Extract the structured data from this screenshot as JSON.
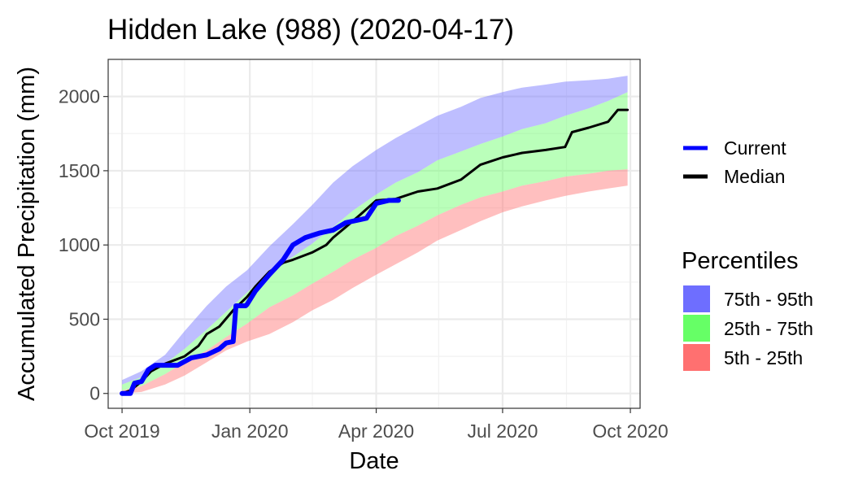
{
  "chart_data": {
    "type": "area",
    "title": "Hidden Lake (988) (2020-04-17)",
    "xlabel": "Date",
    "ylabel": "Accumulated Precipitation (mm)",
    "xlim": [
      "2019-09-21",
      "2020-10-08"
    ],
    "ylim": [
      -100,
      2250
    ],
    "x_ticks": [
      {
        "date": "2019-10-01",
        "label": "Oct 2019"
      },
      {
        "date": "2020-01-01",
        "label": "Jan 2020"
      },
      {
        "date": "2020-04-01",
        "label": "Apr 2020"
      },
      {
        "date": "2020-07-01",
        "label": "Jul 2020"
      },
      {
        "date": "2020-10-01",
        "label": "Oct 2020"
      }
    ],
    "x_minor_ticks": [
      "2019-11-15",
      "2020-02-15",
      "2020-05-16",
      "2020-08-16"
    ],
    "y_ticks": [
      0,
      500,
      1000,
      1500,
      2000
    ],
    "y_minor_ticks": [
      250,
      750,
      1250,
      1750
    ],
    "grid": true,
    "legend_placement": "right",
    "line_legend": [
      {
        "key": "current",
        "label": "Current",
        "color": "#0000ff"
      },
      {
        "key": "median",
        "label": "Median",
        "color": "#000000"
      }
    ],
    "band_legend_title": "Percentiles",
    "band_legend": [
      {
        "key": "p75_95",
        "label": "75th - 95th",
        "color": "#6e6eff"
      },
      {
        "key": "p25_75",
        "label": "25th - 75th",
        "color": "#66ff66"
      },
      {
        "key": "p5_25",
        "label": "5th - 25th",
        "color": "#ff7070"
      }
    ],
    "bands": {
      "dates": [
        "2019-10-01",
        "2019-10-15",
        "2019-11-01",
        "2019-11-15",
        "2019-12-01",
        "2019-12-15",
        "2019-12-30",
        "2020-01-15",
        "2020-02-01",
        "2020-02-15",
        "2020-03-01",
        "2020-03-15",
        "2020-04-01",
        "2020-04-15",
        "2020-05-01",
        "2020-05-15",
        "2020-06-01",
        "2020-06-15",
        "2020-07-01",
        "2020-07-15",
        "2020-08-01",
        "2020-08-15",
        "2020-09-01",
        "2020-09-15",
        "2020-09-29"
      ],
      "p5": [
        0,
        10,
        60,
        120,
        210,
        290,
        350,
        400,
        480,
        560,
        630,
        710,
        800,
        870,
        950,
        1030,
        1100,
        1160,
        1220,
        1260,
        1300,
        1330,
        1360,
        1380,
        1400
      ],
      "p25": [
        20,
        50,
        130,
        210,
        290,
        380,
        470,
        580,
        660,
        740,
        820,
        900,
        980,
        1060,
        1130,
        1200,
        1270,
        1320,
        1360,
        1400,
        1430,
        1460,
        1480,
        1500,
        1510
      ],
      "p75": [
        60,
        110,
        200,
        300,
        430,
        550,
        680,
        820,
        920,
        1010,
        1120,
        1230,
        1340,
        1420,
        1490,
        1570,
        1630,
        1680,
        1730,
        1780,
        1820,
        1870,
        1920,
        1970,
        2030
      ],
      "p95": [
        90,
        150,
        260,
        420,
        590,
        720,
        830,
        990,
        1140,
        1270,
        1420,
        1530,
        1640,
        1720,
        1800,
        1870,
        1930,
        1990,
        2030,
        2060,
        2080,
        2100,
        2110,
        2120,
        2140
      ]
    },
    "median": {
      "x": [
        "2019-10-01",
        "2019-10-07",
        "2019-10-15",
        "2019-10-22",
        "2019-11-01",
        "2019-11-15",
        "2019-11-25",
        "2019-12-01",
        "2019-12-10",
        "2019-12-20",
        "2019-12-30",
        "2020-01-05",
        "2020-01-15",
        "2020-01-25",
        "2020-02-01",
        "2020-02-15",
        "2020-02-25",
        "2020-03-01",
        "2020-03-10",
        "2020-03-20",
        "2020-04-01",
        "2020-04-15",
        "2020-05-01",
        "2020-05-15",
        "2020-06-01",
        "2020-06-15",
        "2020-07-01",
        "2020-07-15",
        "2020-08-01",
        "2020-08-15",
        "2020-08-20",
        "2020-09-01",
        "2020-09-15",
        "2020-09-22",
        "2020-09-29"
      ],
      "y": [
        0,
        20,
        80,
        150,
        200,
        250,
        320,
        400,
        450,
        560,
        650,
        720,
        820,
        880,
        900,
        950,
        1000,
        1050,
        1120,
        1200,
        1300,
        1310,
        1360,
        1380,
        1440,
        1540,
        1590,
        1620,
        1640,
        1660,
        1760,
        1790,
        1830,
        1910,
        1910
      ]
    },
    "current": {
      "x": [
        "2019-10-01",
        "2019-10-07",
        "2019-10-10",
        "2019-10-15",
        "2019-10-20",
        "2019-10-25",
        "2019-11-01",
        "2019-11-10",
        "2019-11-20",
        "2019-12-01",
        "2019-12-10",
        "2019-12-15",
        "2019-12-20",
        "2019-12-22",
        "2019-12-29",
        "2019-12-30",
        "2020-01-05",
        "2020-01-15",
        "2020-01-25",
        "2020-02-01",
        "2020-02-10",
        "2020-02-20",
        "2020-03-01",
        "2020-03-10",
        "2020-03-20",
        "2020-03-25",
        "2020-04-01",
        "2020-04-10",
        "2020-04-17"
      ],
      "y": [
        0,
        0,
        70,
        80,
        160,
        190,
        190,
        190,
        240,
        260,
        300,
        340,
        350,
        590,
        590,
        600,
        690,
        800,
        900,
        1000,
        1050,
        1080,
        1100,
        1150,
        1170,
        1180,
        1280,
        1300,
        1300
      ]
    }
  }
}
